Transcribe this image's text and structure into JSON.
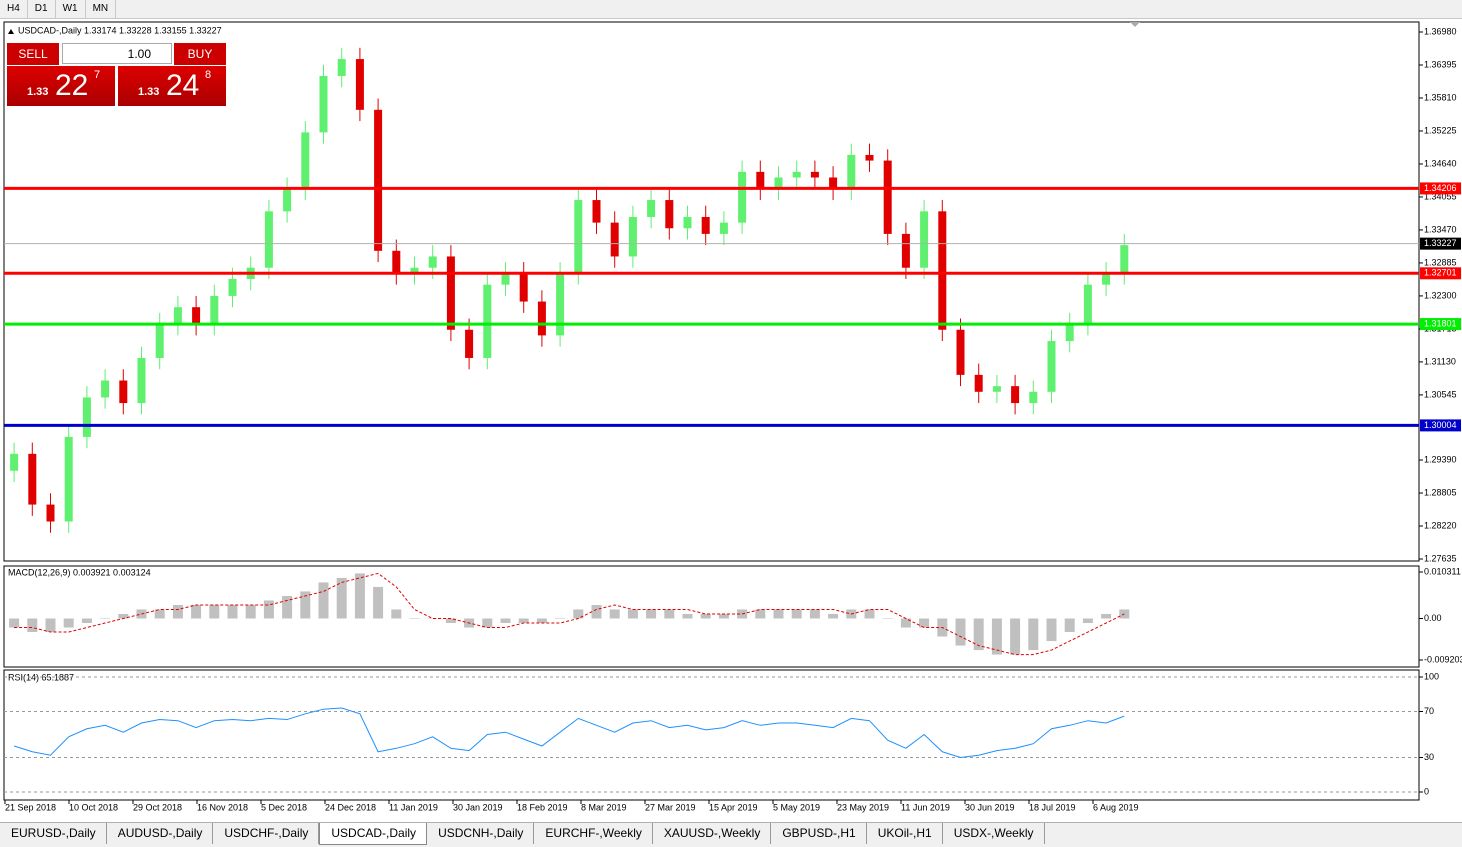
{
  "toolbar": {
    "buttons": [
      "H4",
      "D1",
      "W1",
      "MN"
    ]
  },
  "header": "USDCAD-,Daily 1.33174 1.33228 1.33155 1.33227",
  "trade_panel": {
    "sell": "SELL",
    "buy": "BUY",
    "lots": "1.00",
    "sell_price": {
      "big": "1.33",
      "pips": "22",
      "fraction": "7"
    },
    "buy_price": {
      "big": "1.33",
      "pips": "24",
      "fraction": "8"
    }
  },
  "chart_data": [
    {
      "type": "candlestick",
      "bull_color": "#5ef06e",
      "bear_color": "#e00000",
      "open": [
        1.292,
        1.295,
        1.286,
        1.283,
        1.298,
        1.305,
        1.308,
        1.304,
        1.312,
        1.318,
        1.321,
        1.318,
        1.323,
        1.326,
        1.328,
        1.338,
        1.342,
        1.352,
        1.362,
        1.365,
        1.356,
        1.331,
        1.327,
        1.328,
        1.33,
        1.317,
        1.312,
        1.325,
        1.327,
        1.322,
        1.316,
        1.327,
        1.34,
        1.336,
        1.33,
        1.337,
        1.34,
        1.335,
        1.337,
        1.334,
        1.336,
        1.345,
        1.342,
        1.344,
        1.345,
        1.344,
        1.342,
        1.348,
        1.347,
        1.334,
        1.328,
        1.338,
        1.317,
        1.309,
        1.306,
        1.307,
        1.304,
        1.306,
        1.315,
        1.318,
        1.325,
        1.327
      ],
      "high": [
        1.297,
        1.297,
        1.288,
        1.3,
        1.307,
        1.31,
        1.31,
        1.314,
        1.32,
        1.323,
        1.323,
        1.325,
        1.328,
        1.33,
        1.34,
        1.344,
        1.354,
        1.364,
        1.367,
        1.367,
        1.358,
        1.333,
        1.33,
        1.332,
        1.332,
        1.319,
        1.327,
        1.329,
        1.329,
        1.324,
        1.329,
        1.342,
        1.342,
        1.338,
        1.339,
        1.342,
        1.342,
        1.339,
        1.339,
        1.338,
        1.347,
        1.347,
        1.346,
        1.347,
        1.347,
        1.346,
        1.35,
        1.35,
        1.349,
        1.336,
        1.34,
        1.34,
        1.319,
        1.311,
        1.309,
        1.309,
        1.308,
        1.317,
        1.32,
        1.327,
        1.329,
        1.334
      ],
      "low": [
        1.29,
        1.284,
        1.281,
        1.281,
        1.296,
        1.303,
        1.302,
        1.302,
        1.31,
        1.316,
        1.316,
        1.316,
        1.321,
        1.324,
        1.326,
        1.336,
        1.34,
        1.35,
        1.36,
        1.354,
        1.329,
        1.325,
        1.325,
        1.326,
        1.315,
        1.31,
        1.31,
        1.323,
        1.32,
        1.314,
        1.314,
        1.325,
        1.334,
        1.328,
        1.328,
        1.335,
        1.333,
        1.333,
        1.332,
        1.332,
        1.334,
        1.34,
        1.34,
        1.342,
        1.342,
        1.34,
        1.34,
        1.345,
        1.332,
        1.326,
        1.326,
        1.315,
        1.307,
        1.304,
        1.304,
        1.302,
        1.302,
        1.304,
        1.313,
        1.316,
        1.323,
        1.325
      ],
      "close": [
        1.295,
        1.286,
        1.283,
        1.298,
        1.305,
        1.308,
        1.304,
        1.312,
        1.318,
        1.321,
        1.318,
        1.323,
        1.326,
        1.328,
        1.338,
        1.342,
        1.352,
        1.362,
        1.365,
        1.356,
        1.331,
        1.327,
        1.328,
        1.33,
        1.317,
        1.312,
        1.325,
        1.327,
        1.322,
        1.316,
        1.327,
        1.34,
        1.336,
        1.33,
        1.337,
        1.34,
        1.335,
        1.337,
        1.334,
        1.336,
        1.345,
        1.342,
        1.344,
        1.345,
        1.344,
        1.342,
        1.348,
        1.347,
        1.334,
        1.328,
        1.338,
        1.317,
        1.309,
        1.306,
        1.307,
        1.304,
        1.306,
        1.315,
        1.318,
        1.325,
        1.327,
        1.332
      ],
      "ylim": [
        1.27635,
        1.3698
      ],
      "yticks": [
        {
          "value": 1.3698,
          "label": "1.36980"
        },
        {
          "value": 1.36395,
          "label": "1.36395"
        },
        {
          "value": 1.3581,
          "label": "1.35810"
        },
        {
          "value": 1.35225,
          "label": "1.35225"
        },
        {
          "value": 1.3464,
          "label": "1.34640"
        },
        {
          "value": 1.34055,
          "label": "1.34055"
        },
        {
          "value": 1.3347,
          "label": "1.33470"
        },
        {
          "value": 1.32885,
          "label": "1.32885"
        },
        {
          "value": 1.323,
          "label": "1.32300"
        },
        {
          "value": 1.31715,
          "label": "1.31715"
        },
        {
          "value": 1.3113,
          "label": "1.31130"
        },
        {
          "value": 1.30545,
          "label": "1.30545"
        },
        {
          "value": 1.2939,
          "label": "1.29390"
        },
        {
          "value": 1.28805,
          "label": "1.28805"
        },
        {
          "value": 1.2822,
          "label": "1.28220"
        },
        {
          "value": 1.27635,
          "label": "1.27635"
        }
      ],
      "levels": [
        {
          "value": 1.34206,
          "color": "#ff0000"
        },
        {
          "value": 1.32701,
          "color": "#ff0000"
        },
        {
          "value": 1.31801,
          "color": "#00ee00"
        },
        {
          "value": 1.30004,
          "color": "#0000cc"
        }
      ],
      "current_price": 1.33227,
      "date_labels": [
        "21 Sep 2018",
        "10 Oct 2018",
        "29 Oct 2018",
        "16 Nov 2018",
        "5 Dec 2018",
        "24 Dec 2018",
        "11 Jan 2019",
        "30 Jan 2019",
        "18 Feb 2019",
        "8 Mar 2019",
        "27 Mar 2019",
        "15 Apr 2019",
        "5 May 2019",
        "23 May 2019",
        "11 Jun 2019",
        "30 Jun 2019",
        "18 Jul 2019",
        "6 Aug 2019"
      ]
    },
    {
      "type": "macd",
      "title": "MACD(12,26,9) 0.003921 0.003124",
      "color": "#c0c0c0",
      "signal_color": "#e00000",
      "values": [
        -0.002,
        -0.003,
        -0.003,
        -0.002,
        -0.001,
        0,
        0.001,
        0.002,
        0.002,
        0.003,
        0.003,
        0.003,
        0.003,
        0.003,
        0.004,
        0.005,
        0.006,
        0.008,
        0.009,
        0.01,
        0.007,
        0.002,
        0,
        0,
        -0.001,
        -0.002,
        -0.002,
        -0.001,
        -0.001,
        -0.001,
        0,
        0.002,
        0.003,
        0.002,
        0.002,
        0.002,
        0.002,
        0.001,
        0.001,
        0.001,
        0.002,
        0.002,
        0.002,
        0.002,
        0.002,
        0.001,
        0.002,
        0.002,
        0,
        -0.002,
        -0.002,
        -0.004,
        -0.006,
        -0.007,
        -0.008,
        -0.008,
        -0.007,
        -0.005,
        -0.003,
        -0.001,
        0.001,
        0.002
      ],
      "signal": [
        -0.002,
        -0.002,
        -0.003,
        -0.003,
        -0.002,
        -0.001,
        0,
        0.001,
        0.002,
        0.002,
        0.003,
        0.003,
        0.003,
        0.003,
        0.003,
        0.004,
        0.005,
        0.006,
        0.008,
        0.009,
        0.01,
        0.007,
        0.002,
        0,
        0,
        -0.001,
        -0.002,
        -0.002,
        -0.001,
        -0.001,
        -0.001,
        0,
        0.002,
        0.003,
        0.002,
        0.002,
        0.002,
        0.002,
        0.001,
        0.001,
        0.001,
        0.002,
        0.002,
        0.002,
        0.002,
        0.002,
        0.001,
        0.002,
        0.002,
        0,
        -0.002,
        -0.002,
        -0.004,
        -0.006,
        -0.007,
        -0.008,
        -0.008,
        -0.007,
        -0.005,
        -0.003,
        -0.001,
        0.001
      ],
      "ylim": [
        -0.009203,
        0.010311
      ],
      "yticks": [
        0.010311,
        {
          "value": 0,
          "label": "0.00"
        },
        -0.009203
      ]
    },
    {
      "type": "line",
      "title": "RSI(14) 65.1887",
      "color": "#1e90ff",
      "values": [
        40,
        35,
        32,
        48,
        55,
        58,
        52,
        60,
        63,
        62,
        56,
        62,
        63,
        62,
        64,
        63,
        68,
        72,
        73,
        68,
        35,
        38,
        42,
        48,
        38,
        36,
        50,
        52,
        46,
        40,
        52,
        64,
        58,
        52,
        60,
        62,
        56,
        58,
        54,
        56,
        62,
        58,
        60,
        60,
        58,
        56,
        64,
        62,
        45,
        38,
        50,
        35,
        30,
        32,
        36,
        38,
        42,
        55,
        58,
        62,
        60,
        66
      ],
      "ylim": [
        0,
        100
      ],
      "yticks": [
        100,
        70,
        30,
        0
      ],
      "grid": true
    }
  ],
  "tabs": {
    "items": [
      "EURUSD-,Daily",
      "AUDUSD-,Daily",
      "USDCHF-,Daily",
      "USDCAD-,Daily",
      "USDCNH-,Daily",
      "EURCHF-,Weekly",
      "XAUUSD-,Weekly",
      "GBPUSD-,H1",
      "UKOil-,H1",
      "USDX-,Weekly"
    ],
    "active_index": 3
  }
}
